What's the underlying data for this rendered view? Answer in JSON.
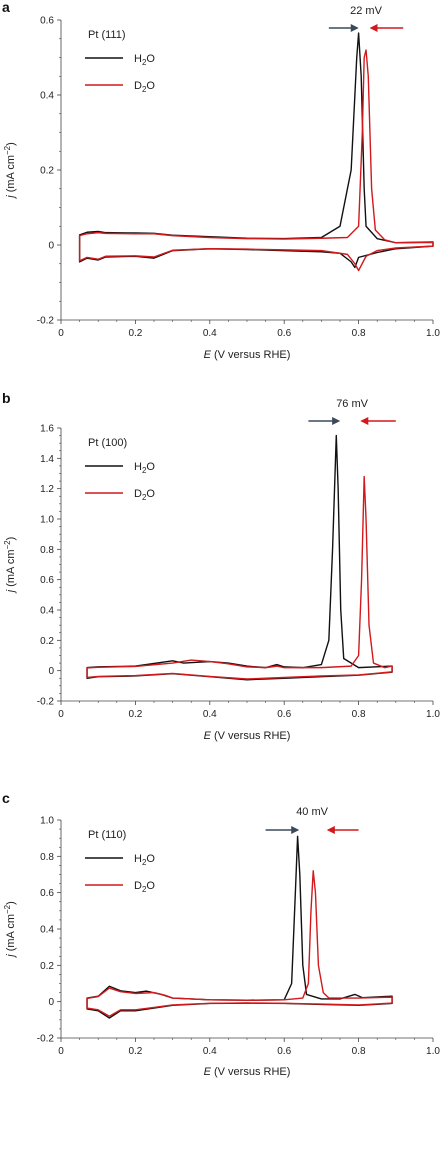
{
  "figure": {
    "colors": {
      "h2o": "#111111",
      "d2o": "#d2191c",
      "arrow_dark": "#3a4a5a",
      "arrow_red": "#d2191c"
    }
  },
  "chart_data": [
    {
      "type": "line",
      "panel_label": "a",
      "title": "Pt (111)",
      "annotation": "22 mV",
      "xlabel_italic": "E",
      "xlabel_rest": " (V versus RHE)",
      "ylabel_italic": "j",
      "ylabel_rest": " (mA cm",
      "ylabel_sup": "−2",
      "ylabel_close": ")",
      "xlim": [
        0,
        1.0
      ],
      "ylim": [
        -0.2,
        0.6
      ],
      "xticks": [
        "0",
        "0.2",
        "0.4",
        "0.6",
        "0.8",
        "1.0"
      ],
      "xtick_values": [
        0,
        0.2,
        0.4,
        0.6,
        0.8,
        1.0
      ],
      "yticks": [
        "-0.2",
        "0",
        "0.2",
        "0.4",
        "0.6"
      ],
      "ytick_values": [
        -0.2,
        0,
        0.2,
        0.4,
        0.6
      ],
      "legend": [
        {
          "main": "H",
          "sub": "2",
          "tail": "O"
        },
        {
          "main": "D",
          "sub": "2",
          "tail": "O"
        }
      ],
      "series": [
        {
          "name": "H2O",
          "color": "#111111",
          "points": [
            [
              0.05,
              0.0
            ],
            [
              0.05,
              0.027
            ],
            [
              0.07,
              0.034
            ],
            [
              0.1,
              0.036
            ],
            [
              0.12,
              0.033
            ],
            [
              0.2,
              0.032
            ],
            [
              0.25,
              0.031
            ],
            [
              0.3,
              0.026
            ],
            [
              0.4,
              0.022
            ],
            [
              0.5,
              0.018
            ],
            [
              0.6,
              0.017
            ],
            [
              0.7,
              0.02
            ],
            [
              0.75,
              0.05
            ],
            [
              0.78,
              0.2
            ],
            [
              0.795,
              0.5
            ],
            [
              0.8,
              0.565
            ],
            [
              0.807,
              0.45
            ],
            [
              0.815,
              0.15
            ],
            [
              0.82,
              0.05
            ],
            [
              0.85,
              0.017
            ],
            [
              0.9,
              0.006
            ],
            [
              1.0,
              0.008
            ],
            [
              1.0,
              -0.003
            ],
            [
              0.9,
              -0.01
            ],
            [
              0.85,
              -0.02
            ],
            [
              0.8,
              -0.033
            ],
            [
              0.79,
              -0.06
            ],
            [
              0.78,
              -0.045
            ],
            [
              0.75,
              -0.022
            ],
            [
              0.7,
              -0.018
            ],
            [
              0.6,
              -0.015
            ],
            [
              0.5,
              -0.012
            ],
            [
              0.4,
              -0.01
            ],
            [
              0.3,
              -0.015
            ],
            [
              0.25,
              -0.035
            ],
            [
              0.2,
              -0.03
            ],
            [
              0.12,
              -0.032
            ],
            [
              0.1,
              -0.04
            ],
            [
              0.07,
              -0.035
            ],
            [
              0.05,
              -0.045
            ],
            [
              0.05,
              0.0
            ]
          ]
        },
        {
          "name": "D2O",
          "color": "#d2191c",
          "points": [
            [
              0.05,
              0.0
            ],
            [
              0.05,
              0.025
            ],
            [
              0.07,
              0.03
            ],
            [
              0.1,
              0.033
            ],
            [
              0.12,
              0.031
            ],
            [
              0.2,
              0.03
            ],
            [
              0.25,
              0.03
            ],
            [
              0.3,
              0.025
            ],
            [
              0.4,
              0.02
            ],
            [
              0.5,
              0.017
            ],
            [
              0.6,
              0.016
            ],
            [
              0.7,
              0.018
            ],
            [
              0.77,
              0.02
            ],
            [
              0.8,
              0.05
            ],
            [
              0.81,
              0.3
            ],
            [
              0.815,
              0.5
            ],
            [
              0.82,
              0.52
            ],
            [
              0.826,
              0.45
            ],
            [
              0.835,
              0.15
            ],
            [
              0.845,
              0.04
            ],
            [
              0.87,
              0.014
            ],
            [
              0.9,
              0.006
            ],
            [
              1.0,
              0.007
            ],
            [
              1.0,
              -0.003
            ],
            [
              0.9,
              -0.008
            ],
            [
              0.85,
              -0.015
            ],
            [
              0.82,
              -0.03
            ],
            [
              0.8,
              -0.068
            ],
            [
              0.79,
              -0.05
            ],
            [
              0.77,
              -0.025
            ],
            [
              0.7,
              -0.015
            ],
            [
              0.6,
              -0.013
            ],
            [
              0.5,
              -0.011
            ],
            [
              0.4,
              -0.01
            ],
            [
              0.3,
              -0.014
            ],
            [
              0.25,
              -0.032
            ],
            [
              0.2,
              -0.029
            ],
            [
              0.12,
              -0.03
            ],
            [
              0.1,
              -0.038
            ],
            [
              0.07,
              -0.033
            ],
            [
              0.05,
              -0.042
            ],
            [
              0.05,
              0.0
            ]
          ]
        }
      ]
    },
    {
      "type": "line",
      "panel_label": "b",
      "title": "Pt (100)",
      "annotation": "76 mV",
      "xlabel_italic": "E",
      "xlabel_rest": " (V versus RHE)",
      "ylabel_italic": "j",
      "ylabel_rest": " (mA cm",
      "ylabel_sup": "−2",
      "ylabel_close": ")",
      "xlim": [
        0,
        1.0
      ],
      "ylim": [
        -0.2,
        1.6
      ],
      "xticks": [
        "0",
        "0.2",
        "0.4",
        "0.6",
        "0.8",
        "1.0"
      ],
      "xtick_values": [
        0,
        0.2,
        0.4,
        0.6,
        0.8,
        1.0
      ],
      "yticks": [
        "-0.2",
        "0",
        "0.2",
        "0.4",
        "0.6",
        "0.8",
        "1.0",
        "1.2",
        "1.4",
        "1.6"
      ],
      "ytick_values": [
        -0.2,
        0,
        0.2,
        0.4,
        0.6,
        0.8,
        1.0,
        1.2,
        1.4,
        1.6
      ],
      "legend": [
        {
          "main": "H",
          "sub": "2",
          "tail": "O"
        },
        {
          "main": "D",
          "sub": "2",
          "tail": "O"
        }
      ],
      "series": [
        {
          "name": "H2O",
          "color": "#111111",
          "points": [
            [
              0.07,
              0.0
            ],
            [
              0.07,
              0.02
            ],
            [
              0.1,
              0.025
            ],
            [
              0.2,
              0.03
            ],
            [
              0.3,
              0.065
            ],
            [
              0.33,
              0.05
            ],
            [
              0.4,
              0.06
            ],
            [
              0.45,
              0.05
            ],
            [
              0.5,
              0.03
            ],
            [
              0.55,
              0.02
            ],
            [
              0.58,
              0.04
            ],
            [
              0.6,
              0.025
            ],
            [
              0.65,
              0.02
            ],
            [
              0.7,
              0.04
            ],
            [
              0.72,
              0.2
            ],
            [
              0.73,
              0.8
            ],
            [
              0.74,
              1.55
            ],
            [
              0.745,
              1.2
            ],
            [
              0.752,
              0.4
            ],
            [
              0.76,
              0.08
            ],
            [
              0.8,
              0.02
            ],
            [
              0.89,
              0.03
            ],
            [
              0.89,
              -0.01
            ],
            [
              0.8,
              -0.03
            ],
            [
              0.7,
              -0.04
            ],
            [
              0.6,
              -0.05
            ],
            [
              0.5,
              -0.06
            ],
            [
              0.4,
              -0.04
            ],
            [
              0.35,
              -0.03
            ],
            [
              0.3,
              -0.02
            ],
            [
              0.2,
              -0.035
            ],
            [
              0.1,
              -0.04
            ],
            [
              0.07,
              -0.05
            ],
            [
              0.07,
              0.0
            ]
          ]
        },
        {
          "name": "D2O",
          "color": "#d2191c",
          "points": [
            [
              0.07,
              0.0
            ],
            [
              0.07,
              0.018
            ],
            [
              0.1,
              0.022
            ],
            [
              0.2,
              0.028
            ],
            [
              0.3,
              0.05
            ],
            [
              0.35,
              0.07
            ],
            [
              0.4,
              0.06
            ],
            [
              0.45,
              0.045
            ],
            [
              0.5,
              0.025
            ],
            [
              0.55,
              0.02
            ],
            [
              0.58,
              0.03
            ],
            [
              0.6,
              0.02
            ],
            [
              0.7,
              0.02
            ],
            [
              0.78,
              0.03
            ],
            [
              0.8,
              0.1
            ],
            [
              0.808,
              0.6
            ],
            [
              0.815,
              1.28
            ],
            [
              0.82,
              1.0
            ],
            [
              0.828,
              0.3
            ],
            [
              0.84,
              0.05
            ],
            [
              0.87,
              0.02
            ],
            [
              0.89,
              0.03
            ],
            [
              0.89,
              -0.008
            ],
            [
              0.8,
              -0.028
            ],
            [
              0.7,
              -0.035
            ],
            [
              0.6,
              -0.045
            ],
            [
              0.5,
              -0.055
            ],
            [
              0.4,
              -0.038
            ],
            [
              0.35,
              -0.028
            ],
            [
              0.3,
              -0.018
            ],
            [
              0.2,
              -0.032
            ],
            [
              0.1,
              -0.038
            ],
            [
              0.07,
              -0.045
            ],
            [
              0.07,
              0.0
            ]
          ]
        }
      ]
    },
    {
      "type": "line",
      "panel_label": "c",
      "title": "Pt (110)",
      "annotation": "40 mV",
      "xlabel_italic": "E",
      "xlabel_rest": " (V versus RHE)",
      "ylabel_italic": "j",
      "ylabel_rest": " (mA cm",
      "ylabel_sup": "−2",
      "ylabel_close": ")",
      "xlim": [
        0,
        1.0
      ],
      "ylim": [
        -0.2,
        1.0
      ],
      "xticks": [
        "0",
        "0.2",
        "0.4",
        "0.6",
        "0.8",
        "1.0"
      ],
      "xtick_values": [
        0,
        0.2,
        0.4,
        0.6,
        0.8,
        1.0
      ],
      "yticks": [
        "-0.2",
        "0",
        "0.2",
        "0.4",
        "0.6",
        "0.8",
        "1.0"
      ],
      "ytick_values": [
        -0.2,
        0,
        0.2,
        0.4,
        0.6,
        0.8,
        1.0
      ],
      "legend": [
        {
          "main": "H",
          "sub": "2",
          "tail": "O"
        },
        {
          "main": "D",
          "sub": "2",
          "tail": "O"
        }
      ],
      "series": [
        {
          "name": "H2O",
          "color": "#111111",
          "points": [
            [
              0.07,
              0.0
            ],
            [
              0.07,
              0.02
            ],
            [
              0.1,
              0.03
            ],
            [
              0.13,
              0.085
            ],
            [
              0.16,
              0.06
            ],
            [
              0.2,
              0.05
            ],
            [
              0.23,
              0.058
            ],
            [
              0.27,
              0.04
            ],
            [
              0.3,
              0.02
            ],
            [
              0.4,
              0.01
            ],
            [
              0.5,
              0.008
            ],
            [
              0.6,
              0.01
            ],
            [
              0.62,
              0.1
            ],
            [
              0.63,
              0.6
            ],
            [
              0.636,
              0.91
            ],
            [
              0.642,
              0.7
            ],
            [
              0.65,
              0.2
            ],
            [
              0.66,
              0.04
            ],
            [
              0.7,
              0.015
            ],
            [
              0.75,
              0.015
            ],
            [
              0.79,
              0.04
            ],
            [
              0.81,
              0.022
            ],
            [
              0.89,
              0.03
            ],
            [
              0.89,
              -0.01
            ],
            [
              0.8,
              -0.02
            ],
            [
              0.7,
              -0.015
            ],
            [
              0.6,
              -0.01
            ],
            [
              0.5,
              -0.008
            ],
            [
              0.4,
              -0.01
            ],
            [
              0.3,
              -0.02
            ],
            [
              0.25,
              -0.035
            ],
            [
              0.2,
              -0.05
            ],
            [
              0.16,
              -0.05
            ],
            [
              0.13,
              -0.09
            ],
            [
              0.1,
              -0.05
            ],
            [
              0.07,
              -0.04
            ],
            [
              0.07,
              0.0
            ]
          ]
        },
        {
          "name": "D2O",
          "color": "#d2191c",
          "points": [
            [
              0.07,
              0.0
            ],
            [
              0.07,
              0.018
            ],
            [
              0.1,
              0.028
            ],
            [
              0.13,
              0.075
            ],
            [
              0.16,
              0.055
            ],
            [
              0.2,
              0.045
            ],
            [
              0.25,
              0.05
            ],
            [
              0.28,
              0.035
            ],
            [
              0.3,
              0.02
            ],
            [
              0.4,
              0.01
            ],
            [
              0.5,
              0.008
            ],
            [
              0.6,
              0.01
            ],
            [
              0.65,
              0.02
            ],
            [
              0.665,
              0.1
            ],
            [
              0.672,
              0.5
            ],
            [
              0.678,
              0.72
            ],
            [
              0.684,
              0.6
            ],
            [
              0.692,
              0.2
            ],
            [
              0.705,
              0.05
            ],
            [
              0.72,
              0.02
            ],
            [
              0.8,
              0.02
            ],
            [
              0.89,
              0.025
            ],
            [
              0.89,
              -0.008
            ],
            [
              0.8,
              -0.018
            ],
            [
              0.7,
              -0.013
            ],
            [
              0.6,
              -0.009
            ],
            [
              0.5,
              -0.007
            ],
            [
              0.4,
              -0.009
            ],
            [
              0.3,
              -0.018
            ],
            [
              0.25,
              -0.032
            ],
            [
              0.2,
              -0.045
            ],
            [
              0.16,
              -0.045
            ],
            [
              0.13,
              -0.08
            ],
            [
              0.1,
              -0.045
            ],
            [
              0.07,
              -0.035
            ],
            [
              0.07,
              0.0
            ]
          ]
        }
      ]
    }
  ]
}
